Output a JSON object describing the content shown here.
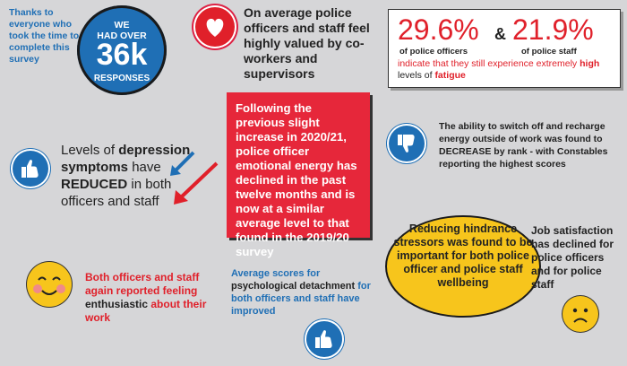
{
  "thanks": "Thanks to everyone who took the time to complete this survey",
  "responses": {
    "line1": "WE",
    "line2": "HAD OVER",
    "big": "36k",
    "line3": "RESPONSES"
  },
  "valued": "On average police officers and staff feel highly valued by co-workers and supervisors",
  "fatigue": {
    "officers_pct": "29.6%",
    "amp": "&",
    "staff_pct": "21.9%",
    "officers_label": "of police officers",
    "staff_label": "of police staff",
    "text_before": "indicate that they still experience extremely ",
    "text_high": "high",
    "text_mid": " levels of ",
    "text_fatigue": "fatigue"
  },
  "emotional_energy": "Following the previous slight increase in 2020/21, police officer emotional energy has declined in the past twelve months and is now at a similar average level to that found in the 2019/20 survey",
  "recharge": {
    "before": "The ability to switch off and recharge energy outside of work was found to ",
    "decrease": "DECREASE",
    "after": " by rank - with Constables reporting the highest scores"
  },
  "depression": {
    "before": "Levels of ",
    "dep": "depression symptoms",
    "mid": " have ",
    "reduced": "REDUCED",
    "after": " in both officers and staff"
  },
  "hindrance": "Reducing hindrance stressors was found to be important for both police officer and police staff wellbeing",
  "job_satisfaction": "Job satisfaction has declined for police officers and for police staff",
  "enthusiastic": {
    "before": "Both officers and staff again reported feeling ",
    "word": "enthusiastic",
    "after": " about their work"
  },
  "detachment": {
    "before": "Average scores for ",
    "bold": "psychological detachment",
    "after": " for both officers and staff have improved"
  },
  "colors": {
    "blue": "#1f6fb5",
    "red": "#e0202a",
    "yellow": "#f7c51c",
    "background": "#d6d6d8"
  },
  "icons": [
    "heart-icon",
    "thumbs-down-icon",
    "thumbs-up-icon",
    "arrows-down-icon",
    "smiley-face-icon",
    "sad-face-icon"
  ]
}
